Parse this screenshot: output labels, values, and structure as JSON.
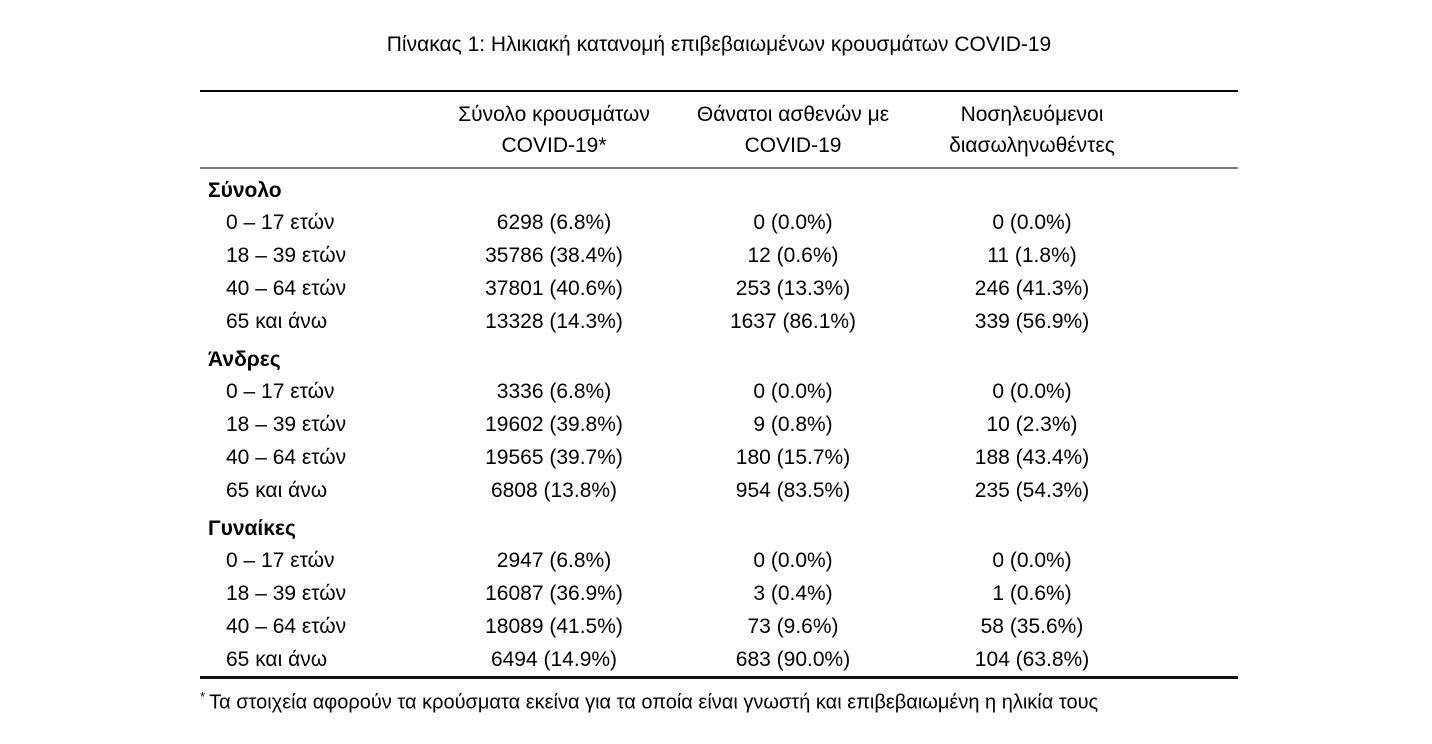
{
  "page": {
    "title": "Πίνακας 1: Ηλικιακή κατανομή επιβεβαιωμένων κρουσμάτων COVID-19",
    "footnote_marker": "*",
    "footnote": "Τα στοιχεία αφορούν τα κρούσματα εκείνα για τα οποία είναι γνωστή και επιβεβαιωμένη η ηλικία τους"
  },
  "colors": {
    "background": "#ffffff",
    "text": "#000000",
    "rule_dark": "#000000",
    "rule_light": "#7a7a7a"
  },
  "table": {
    "headers": [
      {
        "line1": "Σύνολο κρουσμάτων",
        "line2": "COVID-19*"
      },
      {
        "line1": "Θάνατοι ασθενών με",
        "line2": "COVID-19"
      },
      {
        "line1": "Νοσηλευόμενοι",
        "line2": "διασωληνωθέντες"
      }
    ],
    "sections": [
      {
        "label": "Σύνολο",
        "rows": [
          {
            "age": "0 – 17 ετών",
            "cases": "6298 (6.8%)",
            "deaths": "0 (0.0%)",
            "intubated": "0 (0.0%)"
          },
          {
            "age": "18 – 39 ετών",
            "cases": "35786 (38.4%)",
            "deaths": "12 (0.6%)",
            "intubated": "11 (1.8%)"
          },
          {
            "age": "40 – 64 ετών",
            "cases": "37801 (40.6%)",
            "deaths": "253 (13.3%)",
            "intubated": "246 (41.3%)"
          },
          {
            "age": "65 και άνω",
            "cases": "13328 (14.3%)",
            "deaths": "1637 (86.1%)",
            "intubated": "339 (56.9%)"
          }
        ]
      },
      {
        "label": "Άνδρες",
        "rows": [
          {
            "age": "0 – 17 ετών",
            "cases": "3336 (6.8%)",
            "deaths": "0 (0.0%)",
            "intubated": "0 (0.0%)"
          },
          {
            "age": "18 – 39 ετών",
            "cases": "19602 (39.8%)",
            "deaths": "9 (0.8%)",
            "intubated": "10 (2.3%)"
          },
          {
            "age": "40 – 64 ετών",
            "cases": "19565 (39.7%)",
            "deaths": "180 (15.7%)",
            "intubated": "188 (43.4%)"
          },
          {
            "age": "65 και άνω",
            "cases": "6808 (13.8%)",
            "deaths": "954 (83.5%)",
            "intubated": "235 (54.3%)"
          }
        ]
      },
      {
        "label": "Γυναίκες",
        "rows": [
          {
            "age": "0 – 17 ετών",
            "cases": "2947 (6.8%)",
            "deaths": "0 (0.0%)",
            "intubated": "0 (0.0%)"
          },
          {
            "age": "18 – 39 ετών",
            "cases": "16087 (36.9%)",
            "deaths": "3 (0.4%)",
            "intubated": "1 (0.6%)"
          },
          {
            "age": "40 – 64 ετών",
            "cases": "18089 (41.5%)",
            "deaths": "73 (9.6%)",
            "intubated": "58 (35.6%)"
          },
          {
            "age": "65 και άνω",
            "cases": "6494 (14.9%)",
            "deaths": "683 (90.0%)",
            "intubated": "104 (63.8%)"
          }
        ]
      }
    ]
  }
}
